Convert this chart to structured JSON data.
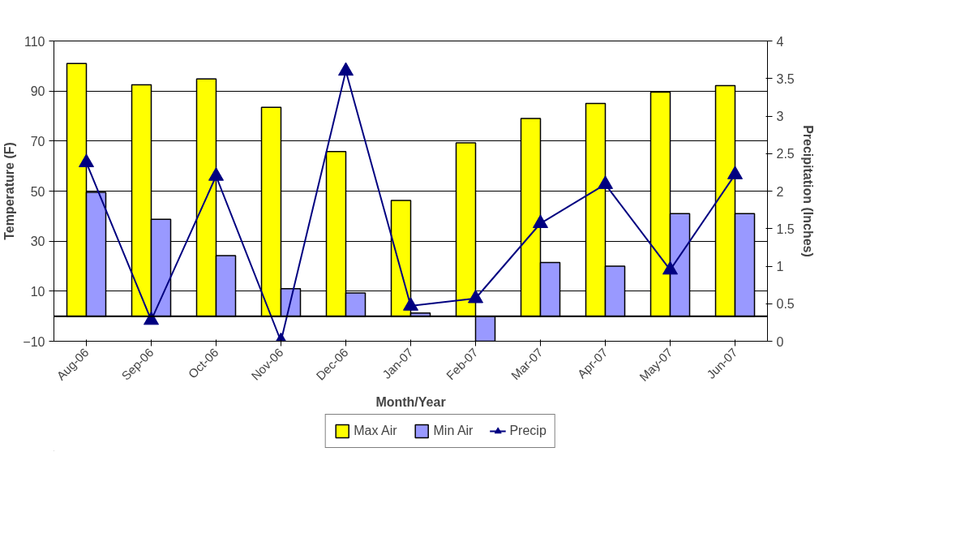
{
  "chart_data": {
    "type": "bar",
    "xlabel": "Month/Year",
    "ylabel": "Temperature (F)",
    "y2label": "Precipitation (Inches)",
    "categories": [
      "Aug-06",
      "Sep-06",
      "Oct-06",
      "Nov-06",
      "Dec-06",
      "Jan-07",
      "Feb-07",
      "Mar-07",
      "Apr-07",
      "May-07",
      "Jun-07"
    ],
    "series": [
      {
        "name": "Max Air",
        "color": "#ffff00",
        "values": [
          101,
          92.5,
          94.8,
          83.5,
          65.8,
          46.3,
          69.3,
          79,
          85,
          89.6,
          92.2
        ]
      },
      {
        "name": "Min Air",
        "color": "#9999ff",
        "values": [
          49.5,
          38.7,
          24.2,
          11,
          9.3,
          1.3,
          -10,
          21.5,
          20,
          41,
          41
        ]
      },
      {
        "name": "Precip",
        "type": "line",
        "axis": "y2",
        "color": "#000080",
        "marker": "triangle",
        "values": [
          2.38,
          0.28,
          2.2,
          0,
          3.6,
          0.47,
          0.57,
          1.57,
          2.09,
          0.95,
          2.22
        ]
      }
    ],
    "ylim": [
      -10,
      110
    ],
    "yticks": [
      -10,
      10,
      30,
      50,
      70,
      90,
      110
    ],
    "y2lim": [
      0,
      4
    ],
    "y2ticks": [
      0,
      0.5,
      1,
      1.5,
      2,
      2.5,
      3,
      3.5,
      4
    ],
    "ref_lines": [
      {
        "axis": "y",
        "value": 0,
        "color": "#000000"
      }
    ],
    "grid": "y",
    "legend": "bottom"
  }
}
